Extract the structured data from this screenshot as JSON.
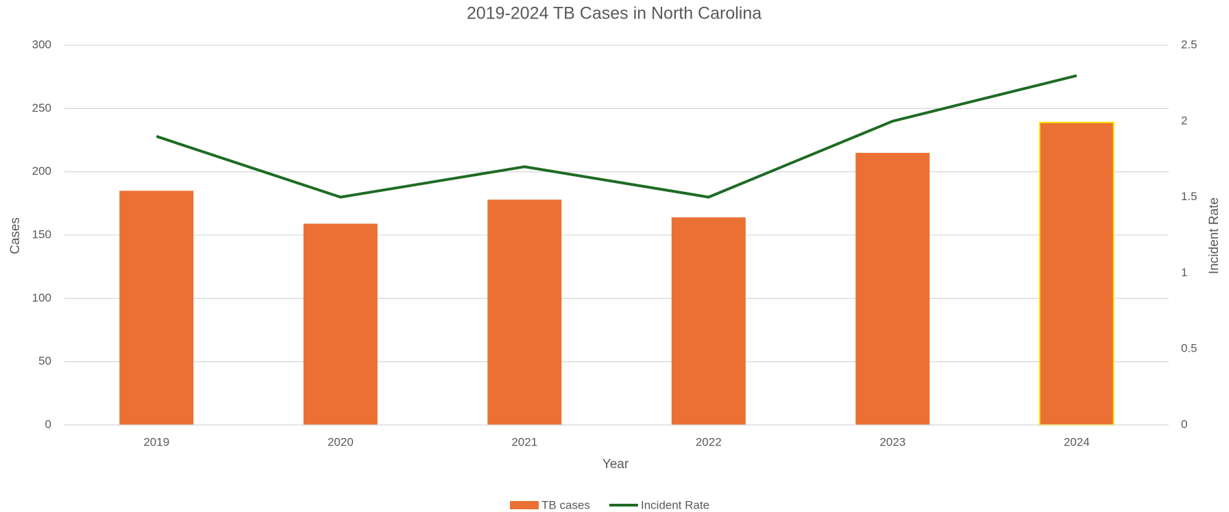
{
  "chart_data": {
    "type": "bar-line",
    "title": "2019-2024 TB Cases in North Carolina",
    "x_label": "Year",
    "y_label": "Cases",
    "y2_label": "Incident Rate",
    "categories": [
      "2019",
      "2020",
      "2021",
      "2022",
      "2023",
      "2024"
    ],
    "series": [
      {
        "name": "TB cases",
        "type": "bar",
        "color": "#ea7133",
        "values": [
          185,
          159,
          178,
          164,
          215,
          239
        ]
      },
      {
        "name": "Incident Rate",
        "type": "line",
        "axis": "y2",
        "color": "#1e6b24",
        "values": [
          1.9,
          1.5,
          1.7,
          1.5,
          2.0,
          2.3
        ]
      }
    ],
    "highlight_category": "2024",
    "highlight_color": "#ffe600",
    "ylim": [
      0,
      300
    ],
    "yticks": [
      0,
      50,
      100,
      150,
      200,
      250,
      300
    ],
    "y2lim": [
      0,
      2.5
    ],
    "y2ticks": [
      0,
      0.5,
      1,
      1.5,
      2,
      2.5
    ],
    "grid": true,
    "legend": "bottom"
  }
}
